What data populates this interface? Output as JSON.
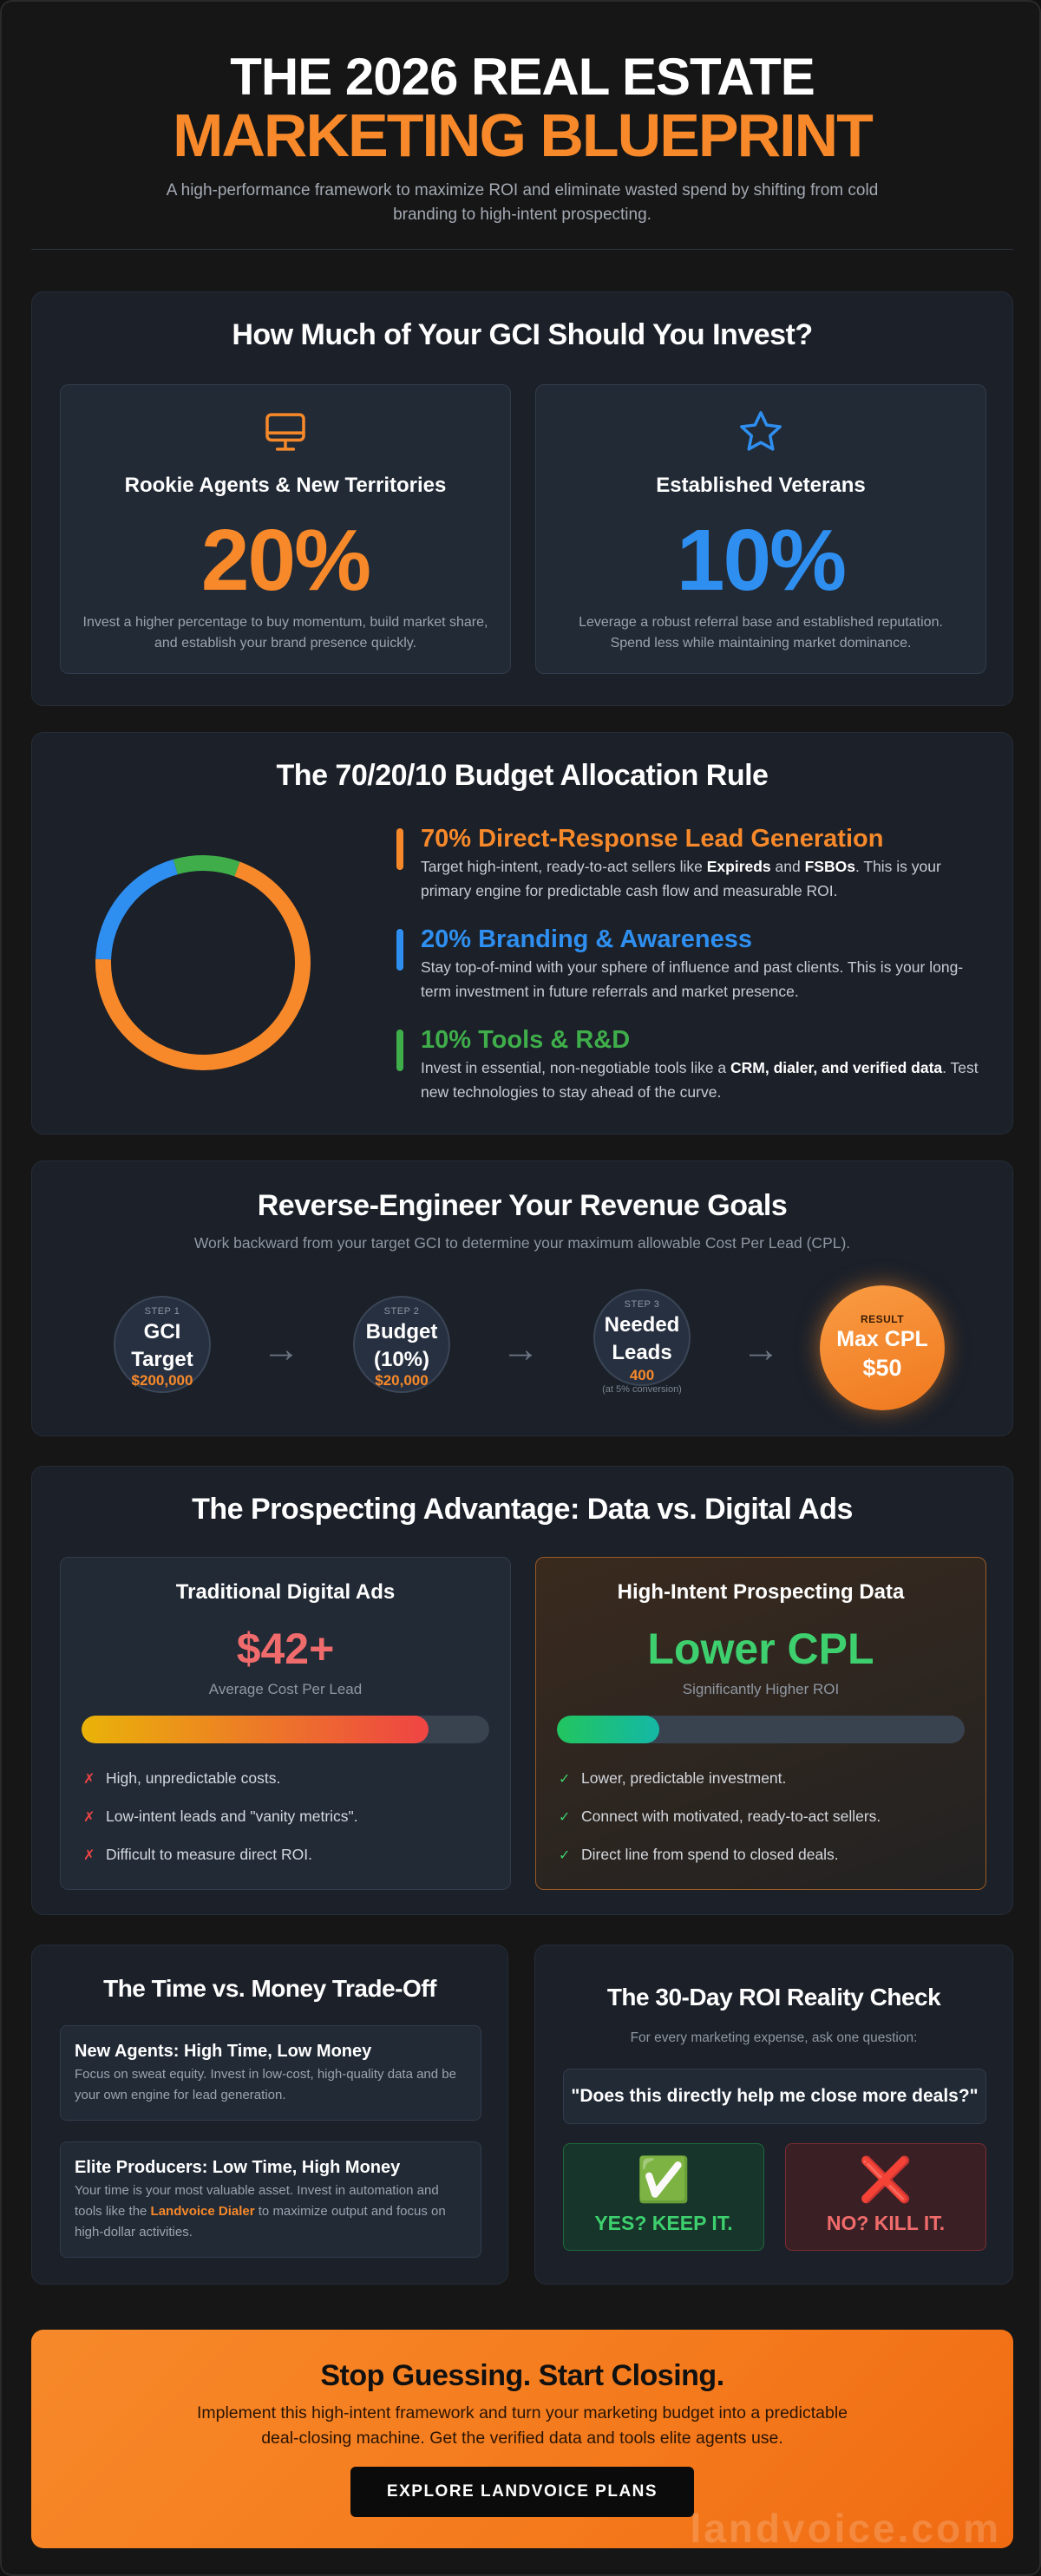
{
  "header": {
    "title_line1": "THE 2026 REAL ESTATE",
    "title_line2": "MARKETING BLUEPRINT",
    "subtitle": "A high-performance framework to maximize ROI and eliminate wasted spend by shifting from cold branding to high-intent prospecting."
  },
  "gci": {
    "title": "How Much of Your GCI Should You Invest?",
    "rookie": {
      "icon": "monitor-icon",
      "label": "Rookie Agents & New Territories",
      "percent": "20%",
      "color": "#f7892a",
      "description": "Invest a higher percentage to buy momentum, build market share, and establish your brand presence quickly."
    },
    "veteran": {
      "icon": "star-icon",
      "label": "Established Veterans",
      "percent": "10%",
      "color": "#2f8ff0",
      "description": "Leverage a robust referral base and established reputation. Spend less while maintaining market dominance."
    }
  },
  "allocation": {
    "title": "The 70/20/10 Budget Allocation Rule",
    "chart_data": {
      "type": "pie",
      "categories": [
        "Direct-Response Lead Generation",
        "Branding & Awareness",
        "Tools & R&D"
      ],
      "values": [
        70,
        20,
        10
      ],
      "colors": [
        "#f7892a",
        "#2f8ff0",
        "#3fae4a"
      ],
      "donut": true
    },
    "items": [
      {
        "title": "70% Direct-Response Lead Generation",
        "color": "#f7892a",
        "desc_pre": "Target high-intent, ready-to-act sellers like ",
        "bold1": "Expireds",
        "mid": " and ",
        "bold2": "FSBOs",
        "desc_post": ". This is your primary engine for predictable cash flow and measurable ROI."
      },
      {
        "title": "20% Branding & Awareness",
        "color": "#2f8ff0",
        "desc": "Stay top-of-mind with your sphere of influence and past clients. This is your long-term investment in future referrals and market presence."
      },
      {
        "title": "10% Tools & R&D",
        "color": "#3fae4a",
        "desc_pre": "Invest in essential, non-negotiable tools like a ",
        "bold1": "CRM, dialer, and verified data",
        "desc_post": ". Test new technologies to stay ahead of the curve."
      }
    ]
  },
  "revenue": {
    "title": "Reverse-Engineer Your Revenue Goals",
    "subtitle": "Work backward from your target GCI to determine your maximum allowable Cost Per Lead (CPL).",
    "steps": [
      {
        "label": "STEP 1",
        "name_line1": "GCI",
        "name_line2": "Target",
        "value": "$200,000"
      },
      {
        "label": "STEP 2",
        "name_line1": "Budget",
        "name_line2": "(10%)",
        "value": "$20,000"
      },
      {
        "label": "STEP 3",
        "name_line1": "Needed",
        "name_line2": "Leads",
        "value": "400",
        "note": "(at 5% conversion)"
      }
    ],
    "arrow": "→",
    "result": {
      "label": "RESULT",
      "name": "Max CPL",
      "value": "$50"
    }
  },
  "prospecting": {
    "title": "The Prospecting Advantage: Data vs. Digital Ads",
    "left": {
      "title": "Traditional Digital Ads",
      "big": "$42+",
      "sub": "Average Cost Per Lead",
      "bar_fraction": 0.85,
      "mark": "✗",
      "points": [
        "High, unpredictable costs.",
        "Low-intent leads and \"vanity metrics\".",
        "Difficult to measure direct ROI."
      ]
    },
    "right": {
      "title": "High-Intent Prospecting Data",
      "big": "Lower CPL",
      "sub": "Significantly Higher ROI",
      "bar_fraction": 0.25,
      "mark": "✓",
      "points": [
        "Lower, predictable investment.",
        "Connect with motivated, ready-to-act sellers.",
        "Direct line from spend to closed deals."
      ]
    }
  },
  "time_money": {
    "title": "The Time vs. Money Trade-Off",
    "new_agents": {
      "title": "New Agents: High Time, Low Money",
      "desc": "Focus on sweat equity. Invest in low-cost, high-quality data and be your own engine for lead generation."
    },
    "elite": {
      "title": "Elite Producers: Low Time, High Money",
      "desc_pre": "Your time is your most valuable asset. Invest in automation and tools like the ",
      "link": "Landvoice Dialer",
      "desc_post": " to maximize output and focus on high-dollar activities."
    }
  },
  "roi": {
    "title": "The 30-Day ROI Reality Check",
    "subtitle": "For every marketing expense, ask one question:",
    "question": "\"Does this directly help me close more deals?\"",
    "yes": {
      "emoji": "✅",
      "label": "YES? KEEP IT."
    },
    "no": {
      "emoji": "❌",
      "label": "NO? KILL IT."
    }
  },
  "cta": {
    "title": "Stop Guessing. Start Closing.",
    "desc": "Implement this high-intent framework and turn your marketing budget into a predictable deal-closing machine. Get the verified data and tools elite agents use.",
    "button": "EXPLORE LANDVOICE PLANS",
    "watermark": "landvoice.com"
  }
}
